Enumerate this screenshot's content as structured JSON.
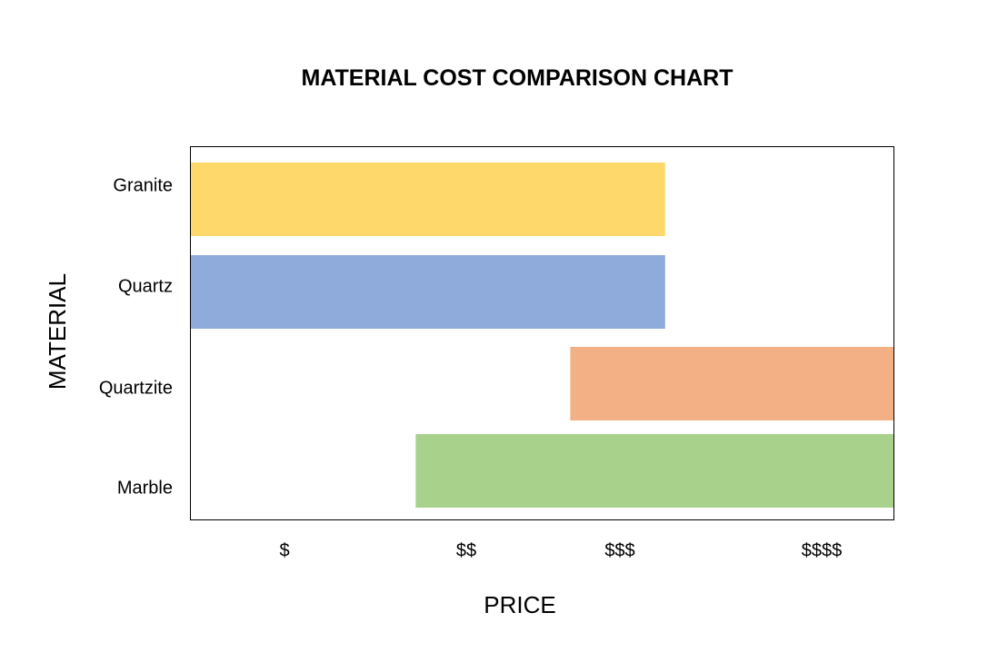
{
  "chart_data": {
    "type": "bar",
    "orientation": "horizontal",
    "title": "MATERIAL COST COMPARISON CHART",
    "xlabel": "PRICE",
    "ylabel": "MATERIAL",
    "x_ticks": [
      "$",
      "$$",
      "$$$",
      "$$$$"
    ],
    "xlim": [
      0.5,
      4.5
    ],
    "categories": [
      "Granite",
      "Quartz",
      "Quartzite",
      "Marble"
    ],
    "ranges": [
      {
        "category": "Granite",
        "start": 0.5,
        "end": 3.2,
        "color": "#FED86A"
      },
      {
        "category": "Quartz",
        "start": 0.5,
        "end": 3.2,
        "color": "#8FABDC"
      },
      {
        "category": "Quartzite",
        "start": 2.66,
        "end": 4.5,
        "color": "#F3B084"
      },
      {
        "category": "Marble",
        "start": 1.78,
        "end": 4.5,
        "color": "#A8D18C"
      }
    ],
    "grid": false,
    "legend": "none"
  }
}
